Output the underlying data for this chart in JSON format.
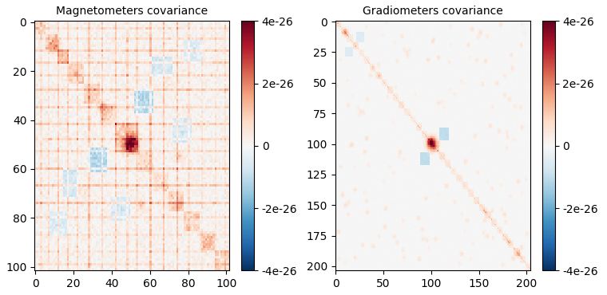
{
  "title1": "Magnetometers covariance",
  "title2": "Gradiometers covariance",
  "mag_size": 102,
  "grad_size": 204,
  "vmin": -4e-26,
  "vmax": 4e-26,
  "mag_xticks": [
    0,
    20,
    40,
    60,
    80,
    100
  ],
  "mag_yticks": [
    0,
    20,
    40,
    60,
    80,
    100
  ],
  "grad_xticks": [
    0,
    50,
    100,
    150,
    200
  ],
  "grad_yticks": [
    0,
    25,
    50,
    75,
    100,
    125,
    150,
    175,
    200
  ],
  "colormap": "RdBu_r",
  "figsize": [
    7.6,
    3.7
  ],
  "dpi": 100
}
